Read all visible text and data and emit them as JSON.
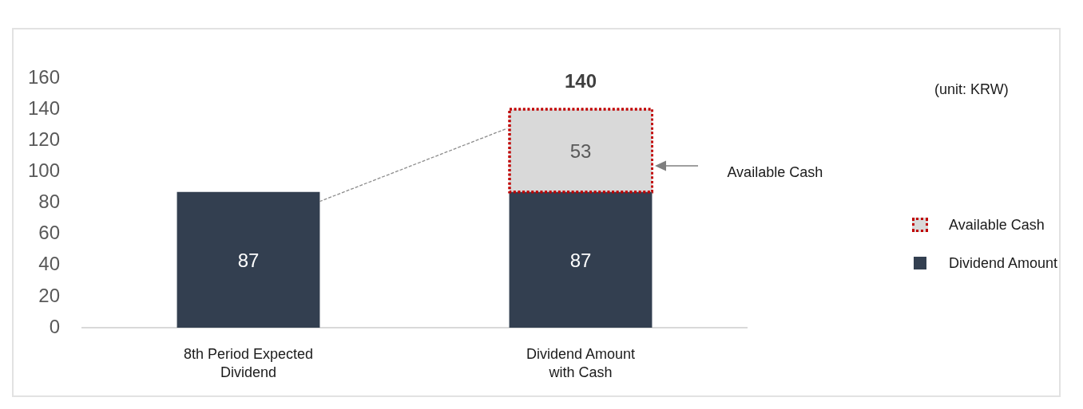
{
  "chart_data": {
    "type": "bar",
    "categories": [
      "8th Period Expected Dividend",
      "Dividend Amount with Cash"
    ],
    "series": [
      {
        "name": "Dividend Amount",
        "color": "#333f50",
        "values": [
          87,
          87
        ]
      },
      {
        "name": "Available Cash",
        "color": "#d9d9d9",
        "line_style": "dotted",
        "values": [
          null,
          53
        ]
      }
    ],
    "stacked": true,
    "ylim": [
      0,
      160
    ],
    "yticks": [
      0,
      20,
      40,
      60,
      80,
      100,
      120,
      140,
      160
    ],
    "data_labels": true,
    "totals": [
      null,
      "140"
    ],
    "legend": "right",
    "annotations": [
      "(unit: KRW)",
      "Available Cash"
    ]
  }
}
